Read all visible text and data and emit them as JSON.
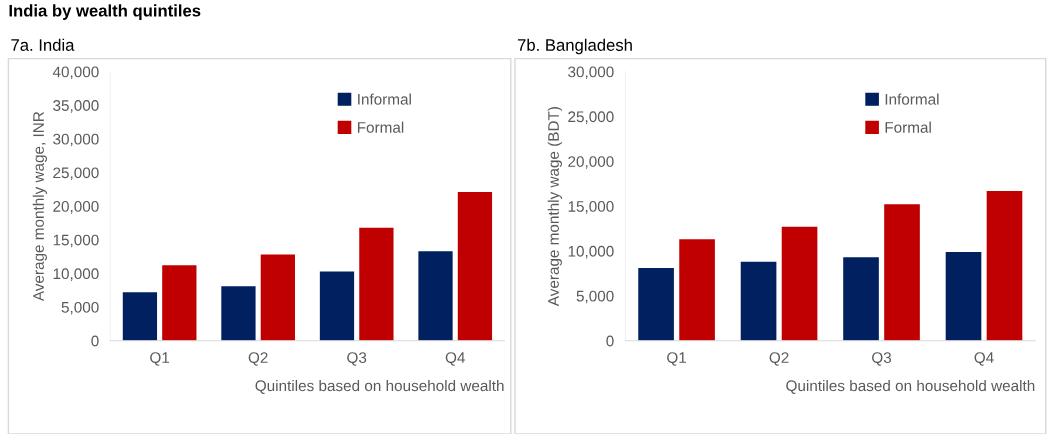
{
  "chart_data": [
    {
      "type": "bar",
      "title": "7a. India",
      "annotations": [
        "India by wealth quintiles"
      ],
      "xlabel": "Quintiles based on household wealth",
      "ylabel": "Average monthly wage, INR",
      "categories": [
        "Q1",
        "Q2",
        "Q3",
        "Q4"
      ],
      "series": [
        {
          "name": "Informal",
          "color": "#002060",
          "values": [
            7200,
            8100,
            10300,
            13300
          ]
        },
        {
          "name": "Formal",
          "color": "#c00000",
          "values": [
            11200,
            12800,
            16800,
            22100
          ]
        }
      ],
      "ylim": [
        0,
        40000
      ],
      "yticks": [
        {
          "value": 0,
          "label": "0"
        },
        {
          "value": 5000,
          "label": "5,000"
        },
        {
          "value": 10000,
          "label": "10,000"
        },
        {
          "value": 15000,
          "label": "15,000"
        },
        {
          "value": 20000,
          "label": "20,000"
        },
        {
          "value": 25000,
          "label": "25,000"
        },
        {
          "value": 30000,
          "label": "30,000"
        },
        {
          "value": 35000,
          "label": "35,000"
        },
        {
          "value": 40000,
          "label": "40,000"
        }
      ],
      "grid": false,
      "legend": "top right"
    },
    {
      "type": "bar",
      "title": "7b. Bangladesh",
      "xlabel": "Quintiles based on household wealth",
      "ylabel": "Average monthly wage (BDT)",
      "categories": [
        "Q1",
        "Q2",
        "Q3",
        "Q4"
      ],
      "series": [
        {
          "name": "Informal",
          "color": "#002060",
          "values": [
            8100,
            8800,
            9300,
            9900
          ]
        },
        {
          "name": "Formal",
          "color": "#c00000",
          "values": [
            11300,
            12700,
            15200,
            16700
          ]
        }
      ],
      "ylim": [
        0,
        30000
      ],
      "yticks": [
        {
          "value": 0,
          "label": "0"
        },
        {
          "value": 5000,
          "label": "5,000"
        },
        {
          "value": 10000,
          "label": "10,000"
        },
        {
          "value": 15000,
          "label": "15,000"
        },
        {
          "value": 20000,
          "label": "20,000"
        },
        {
          "value": 25000,
          "label": "25,000"
        },
        {
          "value": 30000,
          "label": "30,000"
        }
      ],
      "grid": false,
      "legend": "top right"
    }
  ]
}
